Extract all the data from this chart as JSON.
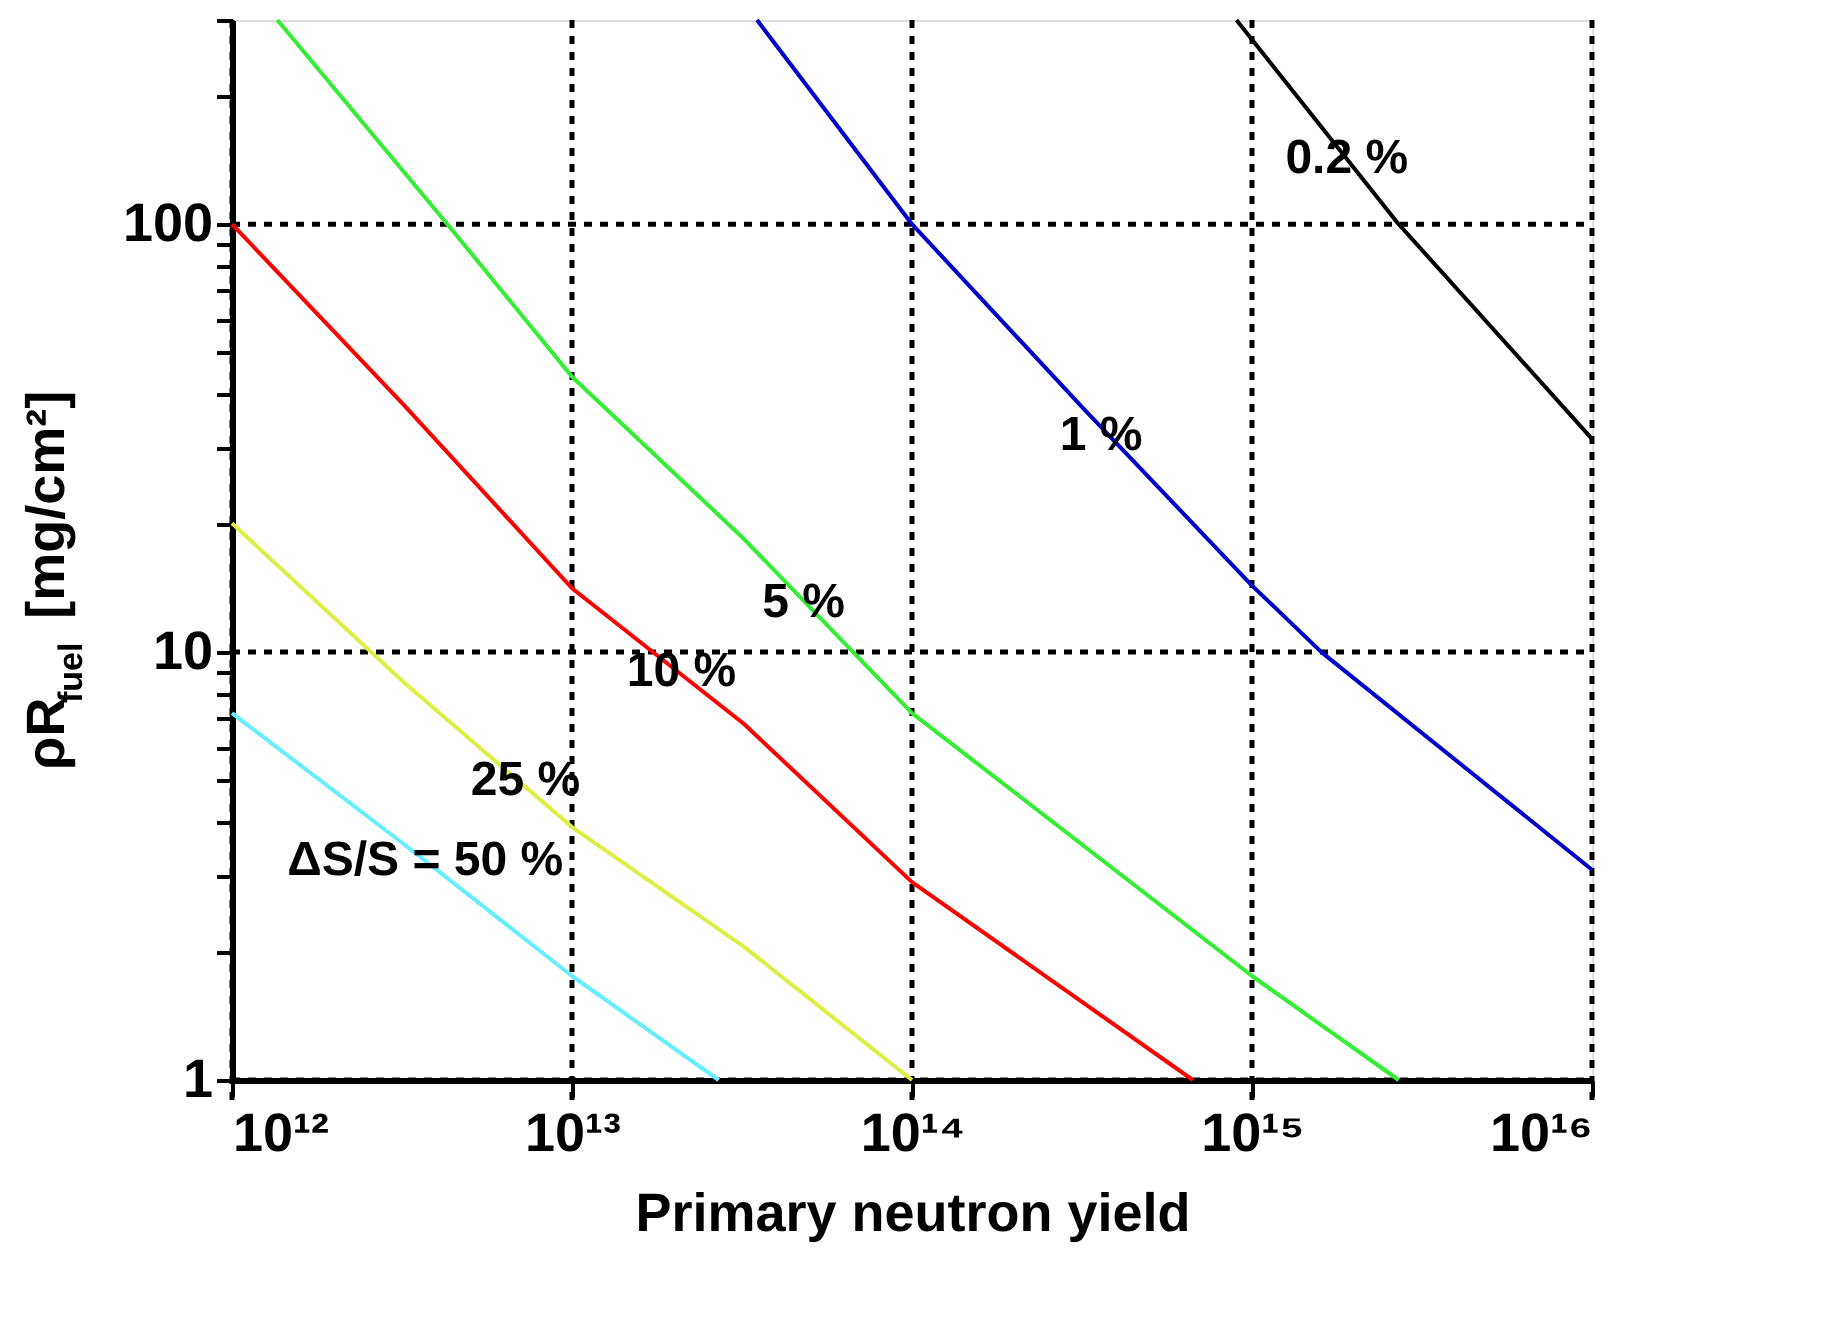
{
  "chart_data": {
    "type": "line",
    "xlabel": "Primary neutron yield",
    "ylabel": "ρR$_{fuel}$ [mg/cm²]",
    "log": "xy",
    "grid": true,
    "line_style": "solid",
    "marker": "none",
    "xlim": [
      1000000000000.0,
      1e+16
    ],
    "ylim": [
      1,
      300
    ],
    "xticks": [
      {
        "value": 1000000000000.0,
        "label": "10¹²"
      },
      {
        "value": 10000000000000.0,
        "label": "10¹³"
      },
      {
        "value": 100000000000000.0,
        "label": "10¹⁴"
      },
      {
        "value": 1000000000000000.0,
        "label": "10¹⁵"
      },
      {
        "value": 1e+16,
        "label": "10¹⁶"
      }
    ],
    "yticks": [
      1,
      {
        "value": 2,
        "label": null
      },
      {
        "value": 3,
        "label": null
      },
      {
        "value": 4,
        "label": null
      },
      {
        "value": 5,
        "label": null
      },
      {
        "value": 6,
        "label": null
      },
      {
        "value": 7,
        "label": null
      },
      {
        "value": 8,
        "label": null
      },
      {
        "value": 9,
        "label": null
      },
      10,
      {
        "value": 20,
        "label": null
      },
      {
        "value": 30,
        "label": null
      },
      {
        "value": 40,
        "label": null
      },
      {
        "value": 50,
        "label": null
      },
      {
        "value": 60,
        "label": null
      },
      {
        "value": 70,
        "label": null
      },
      {
        "value": 80,
        "label": null
      },
      {
        "value": 90,
        "label": null
      },
      100,
      {
        "value": 200,
        "label": null
      },
      {
        "value": 300,
        "label": null
      }
    ],
    "series": [
      {
        "color": "#000000",
        "x": [
          900000000000000.0,
          2700000000000000.0,
          1e+16
        ],
        "values": [
          300,
          100,
          31.5
        ]
      },
      {
        "color": "#0000cc",
        "x": [
          35000000000000.0,
          100000000000000.0,
          320000000000000.0,
          1000000000000000.0,
          1600000000000000.0,
          1e+16
        ],
        "values": [
          300,
          100,
          37,
          14.3,
          10,
          3.1
        ]
      },
      {
        "color": "#33ee33",
        "x": [
          1360000000000.0,
          4300000000000.0,
          10000000000000.0,
          32000000000000.0,
          100000000000000.0,
          1000000000000000.0,
          2700000000000000.0
        ],
        "values": [
          300,
          100,
          44,
          18.4,
          7.2,
          1.75,
          1
        ]
      },
      {
        "color": "#ff0000",
        "x": [
          1000000000000.0,
          3200000000000.0,
          10000000000000.0,
          32000000000000.0,
          100000000000000.0,
          670000000000000.0
        ],
        "values": [
          100,
          37.8,
          14.1,
          6.8,
          2.9,
          1
        ]
      },
      {
        "color": "#ddee44",
        "x": [
          1000000000000.0,
          3200000000000.0,
          10000000000000.0,
          32000000000000.0,
          100000000000000.0
        ],
        "values": [
          20,
          8.5,
          3.9,
          2.05,
          1
        ]
      },
      {
        "color": "#66eeff",
        "x": [
          1000000000000.0,
          3200000000000.0,
          10000000000000.0,
          27000000000000.0
        ],
        "values": [
          7.2,
          3.56,
          1.75,
          1
        ]
      }
    ],
    "annotations": [
      {
        "text": "0.2 %",
        "x": 1900000000000000.0,
        "y": 142
      },
      {
        "text": "1 %",
        "x": 360000000000000.0,
        "y": 32
      },
      {
        "text": "5 %",
        "x": 48000000000000.0,
        "y": 13
      },
      {
        "text": "10 %",
        "x": 21000000000000.0,
        "y": 9
      },
      {
        "text": "25 %",
        "x": 7300000000000.0,
        "y": 5
      },
      {
        "text": "ΔS/S = 50 %",
        "x": 3700000000000.0,
        "y": 3.25
      }
    ]
  }
}
